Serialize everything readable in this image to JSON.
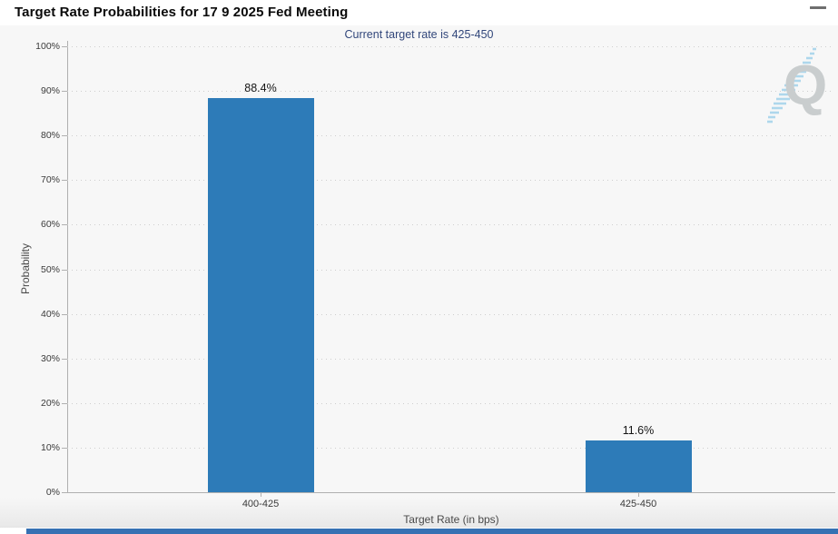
{
  "header": {
    "title": "Target Rate Probabilities for 17 9 2025 Fed Meeting",
    "menu_icon": "hamburger-menu"
  },
  "chart_data": {
    "type": "bar",
    "title": "Target Rate Probabilities for 17 9 2025 Fed Meeting",
    "subtitle": "Current target rate is 425-450",
    "current_target_rate": "425-450",
    "categories": [
      "400-425",
      "425-450"
    ],
    "values": [
      88.4,
      11.6
    ],
    "value_labels": [
      "88.4%",
      "11.6%"
    ],
    "xlabel": "Target Rate (in bps)",
    "ylabel": "Probability",
    "ylim": [
      0,
      100
    ],
    "yticks": [
      "0%",
      "10%",
      "20%",
      "30%",
      "40%",
      "50%",
      "60%",
      "70%",
      "80%",
      "90%",
      "100%"
    ],
    "grid": "horizontal-dotted",
    "legend": "none",
    "bar_color": "#2d7bb8"
  },
  "watermark": {
    "letter": "Q",
    "q_color": "#c9cdce",
    "swoosh_color": "#aed7ec"
  },
  "colors": {
    "chart_background": "#f7f7f7",
    "subtitle_text": "#32477b",
    "axis_line": "#b0b0b0",
    "gridline": "#cecece",
    "bottom_strip": "#3671b3"
  }
}
